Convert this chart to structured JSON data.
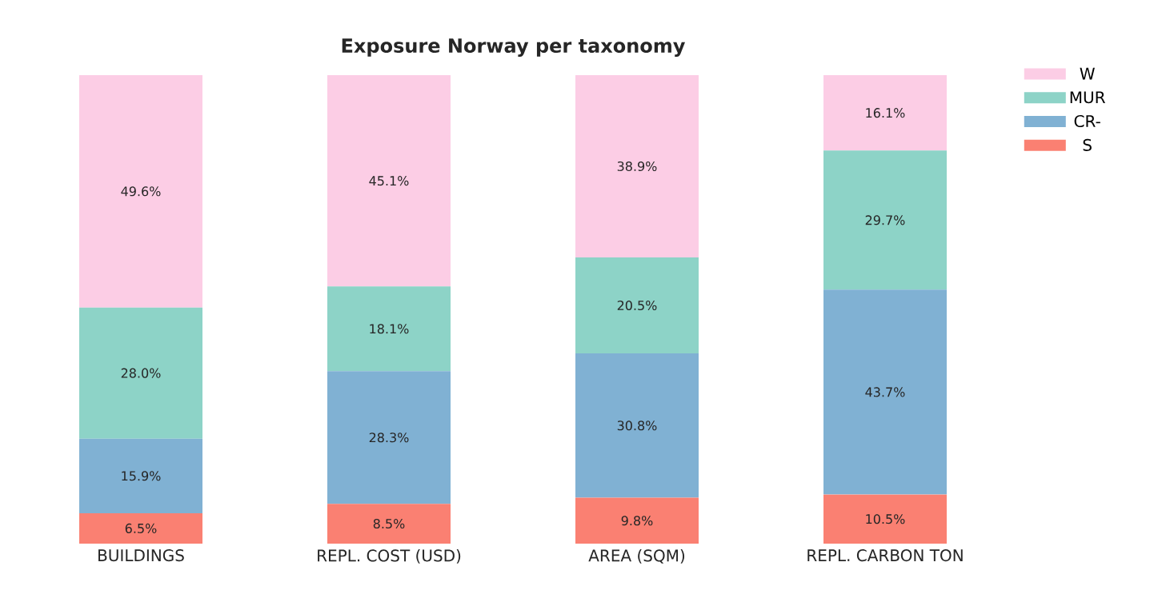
{
  "chart_data": {
    "type": "bar",
    "title": "Exposure Norway per taxonomy",
    "stacked": true,
    "legend": "top right",
    "categories": [
      "BUILDINGS",
      "REPL. COST (USD)",
      "AREA (SQM)",
      "REPL. CARBON TON"
    ],
    "series": [
      {
        "name": "S",
        "color": "#fa8072",
        "values": [
          6.5,
          8.5,
          9.8,
          10.5
        ],
        "value_labels": [
          "6.5%",
          "8.5%",
          "9.8%",
          "10.5%"
        ]
      },
      {
        "name": "CR-",
        "color": "#80b1d3",
        "values": [
          15.9,
          28.3,
          30.8,
          43.7
        ],
        "value_labels": [
          "15.9%",
          "28.3%",
          "30.8%",
          "43.7%"
        ]
      },
      {
        "name": "MUR",
        "color": "#8dd3c7",
        "values": [
          28.0,
          18.1,
          20.5,
          29.7
        ],
        "value_labels": [
          "28.0%",
          "18.1%",
          "20.5%",
          "29.7%"
        ]
      },
      {
        "name": "W",
        "color": "#fccde5",
        "values": [
          49.6,
          45.1,
          38.9,
          16.1
        ],
        "value_labels": [
          "49.6%",
          "45.1%",
          "38.9%",
          "16.1%"
        ]
      }
    ]
  }
}
